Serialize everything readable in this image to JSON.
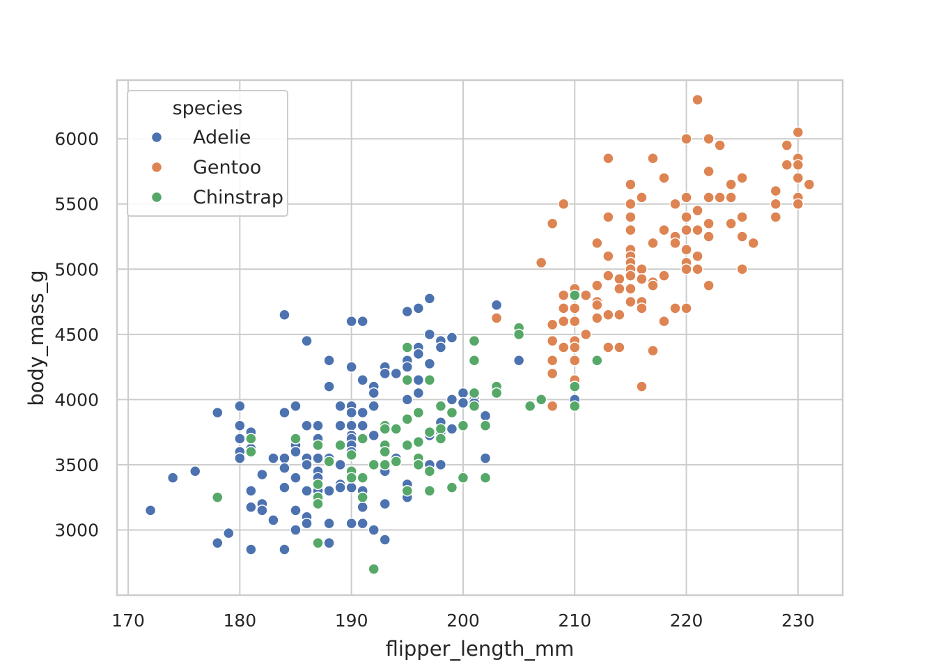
{
  "chart_data": {
    "type": "scatter",
    "title": "",
    "xlabel": "flipper_length_mm",
    "ylabel": "body_mass_g",
    "xlim": [
      169,
      234
    ],
    "ylim": [
      2500,
      6450
    ],
    "xticks": [
      170,
      180,
      190,
      200,
      210,
      220,
      230
    ],
    "yticks": [
      3000,
      3500,
      4000,
      4500,
      5000,
      5500,
      6000
    ],
    "grid": true,
    "legend": {
      "title": "species",
      "placement": "top-left",
      "entries": [
        "Adelie",
        "Gentoo",
        "Chinstrap"
      ]
    },
    "series": [
      {
        "name": "Adelie",
        "color": "#4c72b0",
        "points": [
          [
            172,
            3150
          ],
          [
            174,
            3400
          ],
          [
            176,
            3450
          ],
          [
            178,
            3900
          ],
          [
            178,
            2900
          ],
          [
            179,
            2975
          ],
          [
            180,
            3950
          ],
          [
            180,
            3800
          ],
          [
            180,
            3700
          ],
          [
            180,
            3600
          ],
          [
            180,
            3550
          ],
          [
            181,
            3750
          ],
          [
            181,
            3700
          ],
          [
            181,
            3625
          ],
          [
            181,
            3300
          ],
          [
            181,
            3175
          ],
          [
            181,
            2850
          ],
          [
            182,
            3425
          ],
          [
            182,
            3200
          ],
          [
            182,
            3150
          ],
          [
            183,
            3550
          ],
          [
            183,
            3075
          ],
          [
            184,
            4650
          ],
          [
            184,
            3900
          ],
          [
            184,
            3550
          ],
          [
            184,
            3475
          ],
          [
            184,
            3325
          ],
          [
            184,
            2850
          ],
          [
            185,
            3950
          ],
          [
            185,
            3650
          ],
          [
            185,
            3600
          ],
          [
            185,
            3400
          ],
          [
            185,
            3150
          ],
          [
            185,
            3000
          ],
          [
            186,
            4450
          ],
          [
            186,
            3800
          ],
          [
            186,
            3550
          ],
          [
            186,
            3500
          ],
          [
            186,
            3300
          ],
          [
            186,
            3100
          ],
          [
            186,
            3050
          ],
          [
            187,
            3800
          ],
          [
            187,
            3700
          ],
          [
            187,
            3650
          ],
          [
            187,
            3550
          ],
          [
            187,
            3450
          ],
          [
            187,
            3400
          ],
          [
            187,
            3350
          ],
          [
            187,
            3300
          ],
          [
            187,
            3250
          ],
          [
            188,
            4300
          ],
          [
            188,
            4100
          ],
          [
            188,
            3550
          ],
          [
            188,
            3300
          ],
          [
            188,
            3050
          ],
          [
            188,
            2900
          ],
          [
            189,
            3950
          ],
          [
            189,
            3800
          ],
          [
            189,
            3500
          ],
          [
            189,
            3350
          ],
          [
            189,
            3325
          ],
          [
            190,
            4600
          ],
          [
            190,
            4250
          ],
          [
            190,
            3950
          ],
          [
            190,
            3900
          ],
          [
            190,
            3800
          ],
          [
            190,
            3725
          ],
          [
            190,
            3700
          ],
          [
            190,
            3650
          ],
          [
            190,
            3600
          ],
          [
            190,
            3450
          ],
          [
            190,
            3400
          ],
          [
            190,
            3325
          ],
          [
            190,
            3050
          ],
          [
            191,
            4600
          ],
          [
            191,
            4150
          ],
          [
            191,
            3900
          ],
          [
            191,
            3800
          ],
          [
            191,
            3400
          ],
          [
            191,
            3300
          ],
          [
            191,
            3175
          ],
          [
            191,
            3050
          ],
          [
            192,
            4100
          ],
          [
            192,
            4050
          ],
          [
            192,
            3950
          ],
          [
            192,
            3725
          ],
          [
            192,
            3000
          ],
          [
            193,
            4250
          ],
          [
            193,
            4200
          ],
          [
            193,
            3800
          ],
          [
            193,
            3450
          ],
          [
            193,
            3200
          ],
          [
            193,
            2925
          ],
          [
            194,
            4200
          ],
          [
            194,
            3775
          ],
          [
            194,
            3550
          ],
          [
            195,
            4675
          ],
          [
            195,
            4300
          ],
          [
            195,
            4250
          ],
          [
            195,
            4000
          ],
          [
            195,
            3650
          ],
          [
            195,
            3350
          ],
          [
            195,
            3300
          ],
          [
            195,
            3250
          ],
          [
            196,
            4700
          ],
          [
            196,
            4400
          ],
          [
            196,
            4350
          ],
          [
            196,
            4150
          ],
          [
            196,
            4050
          ],
          [
            197,
            4775
          ],
          [
            197,
            4500
          ],
          [
            197,
            4275
          ],
          [
            197,
            3725
          ],
          [
            197,
            3500
          ],
          [
            198,
            4450
          ],
          [
            198,
            4400
          ],
          [
            198,
            3825
          ],
          [
            198,
            3750
          ],
          [
            198,
            3500
          ],
          [
            199,
            4475
          ],
          [
            199,
            4000
          ],
          [
            199,
            3775
          ],
          [
            200,
            4050
          ],
          [
            200,
            3975
          ],
          [
            201,
            4000
          ],
          [
            201,
            3975
          ],
          [
            202,
            3875
          ],
          [
            202,
            3550
          ],
          [
            203,
            4725
          ],
          [
            205,
            4300
          ],
          [
            210,
            4000
          ]
        ]
      },
      {
        "name": "Gentoo",
        "color": "#dd8452",
        "points": [
          [
            203,
            4625
          ],
          [
            207,
            5050
          ],
          [
            208,
            5350
          ],
          [
            208,
            4575
          ],
          [
            208,
            4450
          ],
          [
            208,
            4300
          ],
          [
            208,
            4200
          ],
          [
            208,
            3950
          ],
          [
            209,
            5500
          ],
          [
            209,
            4800
          ],
          [
            209,
            4700
          ],
          [
            209,
            4600
          ],
          [
            209,
            4400
          ],
          [
            210,
            4850
          ],
          [
            210,
            4800
          ],
          [
            210,
            4700
          ],
          [
            210,
            4600
          ],
          [
            210,
            4450
          ],
          [
            210,
            4400
          ],
          [
            210,
            4300
          ],
          [
            210,
            4150
          ],
          [
            210,
            4100
          ],
          [
            211,
            4800
          ],
          [
            211,
            4500
          ],
          [
            212,
            5200
          ],
          [
            212,
            4875
          ],
          [
            212,
            4750
          ],
          [
            212,
            4725
          ],
          [
            212,
            4625
          ],
          [
            213,
            5850
          ],
          [
            213,
            5400
          ],
          [
            213,
            5100
          ],
          [
            213,
            4950
          ],
          [
            213,
            4650
          ],
          [
            213,
            4400
          ],
          [
            214,
            4925
          ],
          [
            214,
            4850
          ],
          [
            214,
            4650
          ],
          [
            214,
            4400
          ],
          [
            215,
            5650
          ],
          [
            215,
            5500
          ],
          [
            215,
            5400
          ],
          [
            215,
            5300
          ],
          [
            215,
            5150
          ],
          [
            215,
            5100
          ],
          [
            215,
            5050
          ],
          [
            215,
            5000
          ],
          [
            215,
            4950
          ],
          [
            215,
            4850
          ],
          [
            215,
            4750
          ],
          [
            216,
            5550
          ],
          [
            216,
            5000
          ],
          [
            216,
            4925
          ],
          [
            216,
            4750
          ],
          [
            216,
            4700
          ],
          [
            216,
            4100
          ],
          [
            217,
            5850
          ],
          [
            217,
            5200
          ],
          [
            217,
            4900
          ],
          [
            217,
            4875
          ],
          [
            217,
            4375
          ],
          [
            218,
            5700
          ],
          [
            218,
            5300
          ],
          [
            218,
            4950
          ],
          [
            218,
            4600
          ],
          [
            219,
            5500
          ],
          [
            219,
            5250
          ],
          [
            219,
            5200
          ],
          [
            219,
            4700
          ],
          [
            220,
            6000
          ],
          [
            220,
            5550
          ],
          [
            220,
            5400
          ],
          [
            220,
            5300
          ],
          [
            220,
            5150
          ],
          [
            220,
            5050
          ],
          [
            220,
            5000
          ],
          [
            220,
            4700
          ],
          [
            221,
            6300
          ],
          [
            221,
            5450
          ],
          [
            221,
            5300
          ],
          [
            221,
            5100
          ],
          [
            221,
            5000
          ],
          [
            222,
            6000
          ],
          [
            222,
            5750
          ],
          [
            222,
            5550
          ],
          [
            222,
            5350
          ],
          [
            222,
            5250
          ],
          [
            222,
            4875
          ],
          [
            223,
            5950
          ],
          [
            223,
            5550
          ],
          [
            224,
            5650
          ],
          [
            224,
            5550
          ],
          [
            224,
            5350
          ],
          [
            225,
            5700
          ],
          [
            225,
            5400
          ],
          [
            225,
            5250
          ],
          [
            225,
            5000
          ],
          [
            226,
            5200
          ],
          [
            228,
            5600
          ],
          [
            228,
            5500
          ],
          [
            228,
            5400
          ],
          [
            229,
            5950
          ],
          [
            229,
            5800
          ],
          [
            230,
            6050
          ],
          [
            230,
            5850
          ],
          [
            230,
            5800
          ],
          [
            230,
            5700
          ],
          [
            230,
            5550
          ],
          [
            230,
            5500
          ],
          [
            231,
            5650
          ]
        ]
      },
      {
        "name": "Chinstrap",
        "color": "#55a868",
        "points": [
          [
            178,
            3250
          ],
          [
            181,
            3700
          ],
          [
            181,
            3600
          ],
          [
            185,
            3700
          ],
          [
            187,
            3650
          ],
          [
            187,
            3350
          ],
          [
            187,
            3250
          ],
          [
            187,
            3200
          ],
          [
            187,
            2900
          ],
          [
            188,
            3525
          ],
          [
            189,
            3650
          ],
          [
            190,
            3575
          ],
          [
            190,
            3450
          ],
          [
            190,
            3400
          ],
          [
            191,
            3700
          ],
          [
            191,
            3400
          ],
          [
            191,
            3250
          ],
          [
            192,
            3500
          ],
          [
            192,
            2700
          ],
          [
            193,
            3800
          ],
          [
            193,
            3775
          ],
          [
            193,
            3650
          ],
          [
            193,
            3600
          ],
          [
            193,
            3500
          ],
          [
            194,
            3775
          ],
          [
            194,
            3525
          ],
          [
            195,
            4400
          ],
          [
            195,
            4150
          ],
          [
            195,
            3850
          ],
          [
            195,
            3650
          ],
          [
            195,
            3300
          ],
          [
            196,
            3900
          ],
          [
            196,
            3675
          ],
          [
            196,
            3550
          ],
          [
            196,
            3500
          ],
          [
            197,
            4150
          ],
          [
            197,
            3750
          ],
          [
            197,
            3450
          ],
          [
            197,
            3300
          ],
          [
            198,
            3950
          ],
          [
            198,
            3775
          ],
          [
            198,
            3700
          ],
          [
            199,
            3900
          ],
          [
            199,
            3325
          ],
          [
            200,
            3800
          ],
          [
            200,
            3400
          ],
          [
            201,
            4450
          ],
          [
            201,
            4300
          ],
          [
            201,
            4050
          ],
          [
            201,
            3950
          ],
          [
            202,
            3800
          ],
          [
            202,
            3400
          ],
          [
            203,
            4100
          ],
          [
            203,
            4050
          ],
          [
            205,
            4550
          ],
          [
            205,
            4500
          ],
          [
            206,
            3950
          ],
          [
            207,
            4000
          ],
          [
            210,
            4800
          ],
          [
            210,
            4100
          ],
          [
            210,
            3950
          ],
          [
            212,
            4300
          ]
        ]
      }
    ]
  }
}
